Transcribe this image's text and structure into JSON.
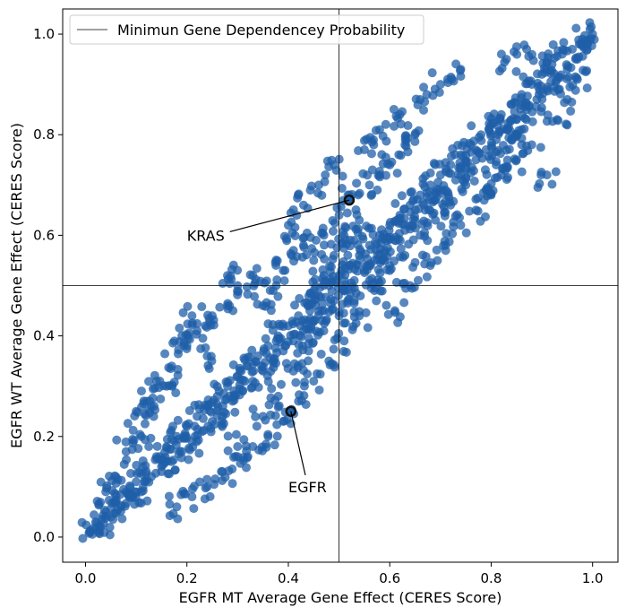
{
  "chart_data": {
    "type": "scatter",
    "title": "",
    "xlabel": "EGFR MT Average Gene Effect (CERES Score)",
    "ylabel": "EGFR WT Average Gene Effect (CERES Score)",
    "xlim": [
      -0.045,
      1.05
    ],
    "ylim": [
      -0.05,
      1.05
    ],
    "xticks": [
      "0.0",
      "0.2",
      "0.4",
      "0.6",
      "0.8",
      "1.0"
    ],
    "yticks": [
      "0.0",
      "0.2",
      "0.4",
      "0.6",
      "0.8",
      "1.0"
    ],
    "grid": false,
    "legend": {
      "placement": "top-left",
      "entries": [
        "Minimun Gene Dependencey Probability"
      ]
    },
    "threshold_lines": {
      "x": 0.5,
      "y": 0.5
    },
    "point_color": "#1f5fa8",
    "series": [
      {
        "points": [
          [
            0.01,
            0.01
          ],
          [
            0.02,
            0.03
          ],
          [
            0.03,
            0.02
          ],
          [
            0.04,
            0.05
          ],
          [
            0.05,
            0.04
          ],
          [
            0.06,
            0.07
          ],
          [
            0.07,
            0.06
          ],
          [
            0.08,
            0.09
          ],
          [
            0.09,
            0.08
          ],
          [
            0.1,
            0.11
          ],
          [
            0.11,
            0.09
          ],
          [
            0.12,
            0.13
          ],
          [
            0.13,
            0.12
          ],
          [
            0.14,
            0.16
          ],
          [
            0.15,
            0.13
          ],
          [
            0.16,
            0.18
          ],
          [
            0.17,
            0.15
          ],
          [
            0.18,
            0.2
          ],
          [
            0.19,
            0.17
          ],
          [
            0.2,
            0.22
          ],
          [
            0.21,
            0.19
          ],
          [
            0.22,
            0.24
          ],
          [
            0.23,
            0.21
          ],
          [
            0.24,
            0.26
          ],
          [
            0.25,
            0.23
          ],
          [
            0.26,
            0.28
          ],
          [
            0.27,
            0.24
          ],
          [
            0.28,
            0.3
          ],
          [
            0.29,
            0.27
          ],
          [
            0.3,
            0.32
          ],
          [
            0.31,
            0.29
          ],
          [
            0.32,
            0.34
          ],
          [
            0.33,
            0.31
          ],
          [
            0.34,
            0.36
          ],
          [
            0.35,
            0.33
          ],
          [
            0.36,
            0.38
          ],
          [
            0.37,
            0.35
          ],
          [
            0.38,
            0.4
          ],
          [
            0.39,
            0.37
          ],
          [
            0.4,
            0.42
          ],
          [
            0.41,
            0.39
          ],
          [
            0.42,
            0.44
          ],
          [
            0.43,
            0.41
          ],
          [
            0.44,
            0.46
          ],
          [
            0.45,
            0.43
          ],
          [
            0.46,
            0.48
          ],
          [
            0.47,
            0.45
          ],
          [
            0.48,
            0.5
          ],
          [
            0.49,
            0.47
          ],
          [
            0.5,
            0.52
          ],
          [
            0.51,
            0.49
          ],
          [
            0.52,
            0.54
          ],
          [
            0.53,
            0.51
          ],
          [
            0.54,
            0.56
          ],
          [
            0.55,
            0.53
          ],
          [
            0.56,
            0.58
          ],
          [
            0.57,
            0.55
          ],
          [
            0.58,
            0.6
          ],
          [
            0.59,
            0.57
          ],
          [
            0.6,
            0.62
          ],
          [
            0.61,
            0.59
          ],
          [
            0.62,
            0.64
          ],
          [
            0.63,
            0.61
          ],
          [
            0.64,
            0.66
          ],
          [
            0.65,
            0.63
          ],
          [
            0.66,
            0.68
          ],
          [
            0.67,
            0.65
          ],
          [
            0.68,
            0.7
          ],
          [
            0.69,
            0.67
          ],
          [
            0.7,
            0.72
          ],
          [
            0.71,
            0.69
          ],
          [
            0.72,
            0.74
          ],
          [
            0.73,
            0.71
          ],
          [
            0.74,
            0.76
          ],
          [
            0.75,
            0.73
          ],
          [
            0.76,
            0.78
          ],
          [
            0.77,
            0.75
          ],
          [
            0.78,
            0.8
          ],
          [
            0.79,
            0.77
          ],
          [
            0.8,
            0.82
          ],
          [
            0.81,
            0.79
          ],
          [
            0.82,
            0.84
          ],
          [
            0.83,
            0.81
          ],
          [
            0.84,
            0.86
          ],
          [
            0.85,
            0.83
          ],
          [
            0.86,
            0.88
          ],
          [
            0.87,
            0.85
          ],
          [
            0.88,
            0.9
          ],
          [
            0.89,
            0.87
          ],
          [
            0.9,
            0.92
          ],
          [
            0.91,
            0.89
          ],
          [
            0.92,
            0.94
          ],
          [
            0.93,
            0.91
          ],
          [
            0.94,
            0.96
          ],
          [
            0.95,
            0.93
          ],
          [
            0.96,
            0.97
          ],
          [
            0.97,
            0.95
          ],
          [
            0.98,
            0.99
          ],
          [
            0.99,
            0.98
          ],
          [
            1.0,
            1.0
          ],
          [
            0.1,
            0.25
          ],
          [
            0.12,
            0.27
          ],
          [
            0.14,
            0.31
          ],
          [
            0.17,
            0.34
          ],
          [
            0.2,
            0.38
          ],
          [
            0.22,
            0.41
          ],
          [
            0.25,
            0.44
          ],
          [
            0.28,
            0.46
          ],
          [
            0.3,
            0.5
          ],
          [
            0.33,
            0.52
          ],
          [
            0.18,
            0.06
          ],
          [
            0.21,
            0.08
          ],
          [
            0.24,
            0.1
          ],
          [
            0.27,
            0.13
          ],
          [
            0.3,
            0.16
          ],
          [
            0.33,
            0.18
          ],
          [
            0.36,
            0.2
          ],
          [
            0.39,
            0.23
          ],
          [
            0.42,
            0.27
          ],
          [
            0.45,
            0.31
          ],
          [
            0.48,
            0.35
          ],
          [
            0.51,
            0.39
          ],
          [
            0.54,
            0.44
          ],
          [
            0.57,
            0.49
          ],
          [
            0.6,
            0.53
          ],
          [
            0.63,
            0.56
          ],
          [
            0.66,
            0.6
          ],
          [
            0.69,
            0.63
          ],
          [
            0.72,
            0.66
          ],
          [
            0.75,
            0.7
          ],
          [
            0.4,
            0.62
          ],
          [
            0.43,
            0.66
          ],
          [
            0.46,
            0.7
          ],
          [
            0.49,
            0.74
          ],
          [
            0.55,
            0.77
          ],
          [
            0.58,
            0.81
          ],
          [
            0.62,
            0.84
          ],
          [
            0.66,
            0.87
          ],
          [
            0.7,
            0.9
          ],
          [
            0.74,
            0.93
          ],
          [
            0.8,
            0.68
          ],
          [
            0.82,
            0.72
          ],
          [
            0.85,
            0.75
          ],
          [
            0.88,
            0.78
          ],
          [
            0.91,
            0.72
          ],
          [
            0.93,
            0.83
          ],
          [
            0.95,
            0.87
          ],
          [
            0.97,
            0.91
          ],
          [
            0.83,
            0.95
          ],
          [
            0.87,
            0.97
          ],
          [
            0.28,
            0.52
          ],
          [
            0.24,
            0.36
          ],
          [
            0.21,
            0.44
          ],
          [
            0.19,
            0.4
          ],
          [
            0.16,
            0.3
          ],
          [
            0.13,
            0.26
          ],
          [
            0.11,
            0.2
          ],
          [
            0.08,
            0.17
          ],
          [
            0.06,
            0.12
          ],
          [
            0.04,
            0.09
          ],
          [
            0.3,
            0.18
          ],
          [
            0.35,
            0.24
          ],
          [
            0.38,
            0.28
          ],
          [
            0.41,
            0.33
          ],
          [
            0.44,
            0.37
          ],
          [
            0.47,
            0.41
          ],
          [
            0.5,
            0.44
          ],
          [
            0.53,
            0.47
          ],
          [
            0.56,
            0.51
          ],
          [
            0.59,
            0.55
          ],
          [
            0.61,
            0.45
          ],
          [
            0.64,
            0.5
          ],
          [
            0.68,
            0.54
          ],
          [
            0.71,
            0.58
          ],
          [
            0.74,
            0.62
          ],
          [
            0.77,
            0.65
          ],
          [
            0.79,
            0.69
          ],
          [
            0.81,
            0.74
          ],
          [
            0.84,
            0.79
          ],
          [
            0.86,
            0.81
          ],
          [
            0.45,
            0.55
          ],
          [
            0.47,
            0.6
          ],
          [
            0.5,
            0.64
          ],
          [
            0.52,
            0.68
          ],
          [
            0.54,
            0.63
          ],
          [
            0.56,
            0.7
          ],
          [
            0.58,
            0.72
          ],
          [
            0.6,
            0.74
          ],
          [
            0.63,
            0.78
          ],
          [
            0.65,
            0.8
          ],
          [
            0.35,
            0.46
          ],
          [
            0.37,
            0.49
          ],
          [
            0.39,
            0.53
          ],
          [
            0.41,
            0.57
          ],
          [
            0.43,
            0.58
          ],
          [
            0.45,
            0.49
          ],
          [
            0.47,
            0.52
          ],
          [
            0.49,
            0.56
          ],
          [
            0.51,
            0.6
          ],
          [
            0.53,
            0.59
          ]
        ]
      }
    ],
    "highlighted": [
      {
        "label": "KRAS",
        "x": 0.52,
        "y": 0.67,
        "text_x": 0.2,
        "text_y": 0.6
      },
      {
        "label": "EGFR",
        "x": 0.405,
        "y": 0.25,
        "text_x": 0.4,
        "text_y": 0.1
      }
    ]
  }
}
